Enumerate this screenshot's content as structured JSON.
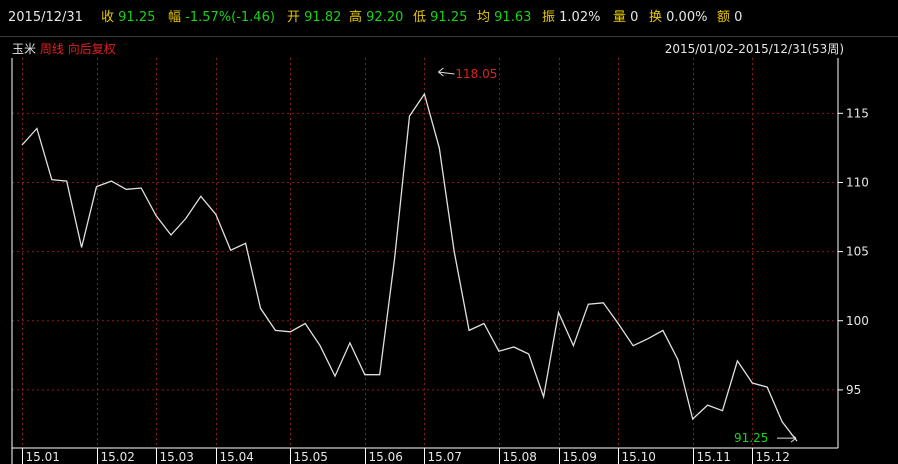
{
  "toolbar": {
    "date": "2015/12/31",
    "close_label": "收",
    "close_value": "91.25",
    "change_label": "幅",
    "change_value": "-1.57%(-1.46)",
    "open_label": "开",
    "open_value": "91.82",
    "high_label": "高",
    "high_value": "92.20",
    "low_label": "低",
    "low_value": "91.25",
    "avg_label": "均",
    "avg_value": "91.63",
    "amp_label": "振",
    "amp_value": "1.02%",
    "vol_label": "量",
    "vol_value": "0",
    "turnover_label": "换",
    "turnover_value": "0.00%",
    "amount_label": "额",
    "amount_value": "0"
  },
  "subheader": {
    "symbol": "玉米",
    "period": "周线",
    "adjust": "向后复权",
    "range": "2015/01/02-2015/12/31(53周)"
  },
  "colors": {
    "background": "#000000",
    "line": "#e0e0e0",
    "grid": "#8b1a1a",
    "axis": "#ffffff",
    "max_label": "#e02020",
    "last_label": "#19d219"
  },
  "chart_data": {
    "type": "line",
    "title": "",
    "xlabel": "",
    "ylabel": "",
    "ylim": [
      90.8,
      119.0
    ],
    "yticks": [
      95,
      100,
      105,
      110,
      115
    ],
    "grid": true,
    "x_tick_labels": [
      "15.01",
      "15.02",
      "15.03",
      "15.04",
      "15.05",
      "15.06",
      "15.07",
      "15.08",
      "15.09",
      "15.10",
      "15.11",
      "15.12"
    ],
    "x_tick_index": [
      0,
      5,
      9,
      13,
      18,
      23,
      27,
      32,
      36,
      40,
      45,
      49
    ],
    "values": [
      112.7,
      113.9,
      110.2,
      110.1,
      105.3,
      109.7,
      110.1,
      109.5,
      109.6,
      107.6,
      106.2,
      107.4,
      109.0,
      107.7,
      105.1,
      105.6,
      100.9,
      99.3,
      99.2,
      99.8,
      98.2,
      96.0,
      98.4,
      96.1,
      96.1,
      104.5,
      114.8,
      116.4,
      112.5,
      105.0,
      99.3,
      99.8,
      97.8,
      98.1,
      97.6,
      94.5,
      100.6,
      98.2,
      101.2,
      101.3,
      99.8,
      98.2,
      98.7,
      99.3,
      97.2,
      92.9,
      93.9,
      93.5,
      97.1,
      95.5,
      95.2,
      92.7,
      91.3
    ],
    "max_annotation": "118.05",
    "last_annotation": "91.25"
  }
}
